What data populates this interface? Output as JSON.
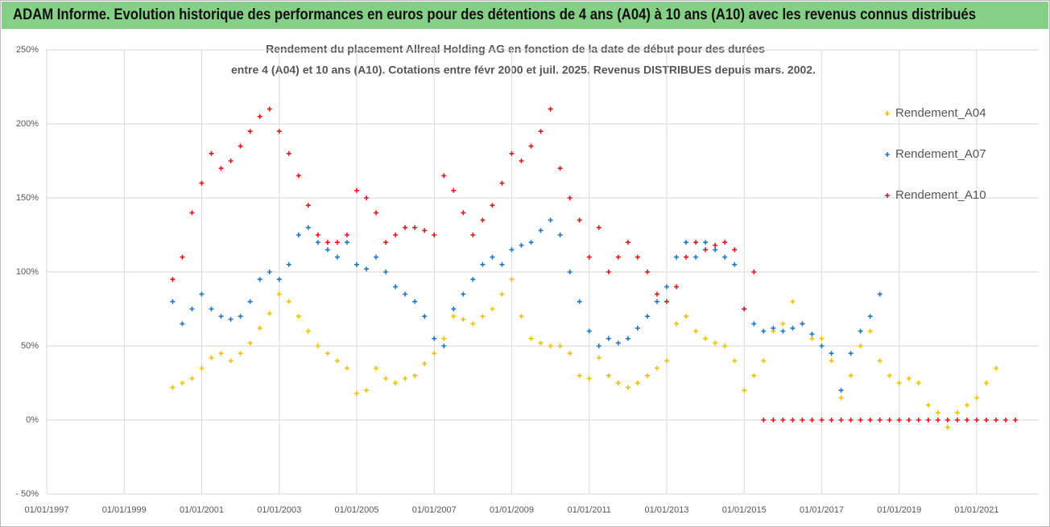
{
  "chart_data": {
    "type": "scatter",
    "title": "ADAM Informe. Evolution historique des performances en euros pour des détentions de 4 ans (A04) à 10 ans (A10) avec les revenus connus distribués",
    "subtitle": [
      "Rendement du placement Allreal Holding AG en fonction de la date de début pour des durées",
      "entre 4 (A04) et 10 ans (A10). Cotations entre févr 2000 et juil. 2025. Revenus DISTRIBUES depuis mars. 2002."
    ],
    "xlim": [
      1997,
      2022.6
    ],
    "ylim": [
      -50,
      250
    ],
    "grid": true,
    "legend": "right",
    "xticks": [
      {
        "value": 1997,
        "label": "01/01/1997"
      },
      {
        "value": 1999,
        "label": "01/01/1999"
      },
      {
        "value": 2001,
        "label": "01/01/2001"
      },
      {
        "value": 2003,
        "label": "01/01/2003"
      },
      {
        "value": 2005,
        "label": "01/01/2005"
      },
      {
        "value": 2007,
        "label": "01/01/2007"
      },
      {
        "value": 2009,
        "label": "01/01/2009"
      },
      {
        "value": 2011,
        "label": "01/01/2011"
      },
      {
        "value": 2013,
        "label": "01/01/2013"
      },
      {
        "value": 2015,
        "label": "01/01/2015"
      },
      {
        "value": 2017,
        "label": "01/01/2017"
      },
      {
        "value": 2019,
        "label": "01/01/2019"
      },
      {
        "value": 2021,
        "label": "01/01/2021"
      }
    ],
    "yticks": [
      {
        "value": -50,
        "label": "- 50%"
      },
      {
        "value": 0,
        "label": "0%"
      },
      {
        "value": 50,
        "label": "50%"
      },
      {
        "value": 100,
        "label": "100%"
      },
      {
        "value": 150,
        "label": "150%"
      },
      {
        "value": 200,
        "label": "200%"
      },
      {
        "value": 250,
        "label": "250%"
      }
    ],
    "x": [
      2000.25,
      2000.5,
      2000.75,
      2001,
      2001.25,
      2001.5,
      2001.75,
      2002,
      2002.25,
      2002.5,
      2002.75,
      2003,
      2003.25,
      2003.5,
      2003.75,
      2004,
      2004.25,
      2004.5,
      2004.75,
      2005,
      2005.25,
      2005.5,
      2005.75,
      2006,
      2006.25,
      2006.5,
      2006.75,
      2007,
      2007.25,
      2007.5,
      2007.75,
      2008,
      2008.25,
      2008.5,
      2008.75,
      2009,
      2009.25,
      2009.5,
      2009.75,
      2010,
      2010.25,
      2010.5,
      2010.75,
      2011,
      2011.25,
      2011.5,
      2011.75,
      2012,
      2012.25,
      2012.5,
      2012.75,
      2013,
      2013.25,
      2013.5,
      2013.75,
      2014,
      2014.25,
      2014.5,
      2014.75,
      2015,
      2015.25,
      2015.5,
      2015.75,
      2016,
      2016.25,
      2016.5,
      2016.75,
      2017,
      2017.25,
      2017.5,
      2017.75,
      2018,
      2018.25,
      2018.5,
      2018.75,
      2019,
      2019.25,
      2019.5,
      2019.75,
      2020,
      2020.25,
      2020.5,
      2020.75,
      2021,
      2021.25,
      2021.5,
      2021.75,
      2022
    ],
    "series": [
      {
        "name": "Rendement_A04",
        "color": "#f5c000",
        "values": [
          22,
          25,
          28,
          35,
          42,
          45,
          40,
          45,
          52,
          62,
          72,
          85,
          80,
          70,
          60,
          50,
          45,
          40,
          35,
          18,
          20,
          35,
          28,
          25,
          28,
          30,
          38,
          45,
          55,
          70,
          68,
          65,
          70,
          75,
          85,
          95,
          70,
          55,
          52,
          50,
          50,
          45,
          30,
          28,
          42,
          30,
          25,
          22,
          25,
          30,
          35,
          40,
          65,
          70,
          60,
          55,
          52,
          50,
          40,
          20,
          30,
          40,
          60,
          65,
          80,
          65,
          55,
          55,
          40,
          15,
          30,
          50,
          60,
          40,
          30,
          25,
          28,
          25,
          10,
          5,
          -5,
          5,
          10,
          15,
          25,
          35,
          null,
          null
        ]
      },
      {
        "name": "Rendement_A07",
        "color": "#1f78c8",
        "values": [
          80,
          65,
          75,
          85,
          75,
          70,
          68,
          70,
          80,
          95,
          100,
          95,
          105,
          125,
          130,
          120,
          115,
          110,
          120,
          105,
          102,
          110,
          100,
          90,
          85,
          80,
          70,
          55,
          50,
          75,
          85,
          95,
          105,
          110,
          105,
          115,
          118,
          120,
          128,
          135,
          125,
          100,
          80,
          60,
          50,
          55,
          52,
          55,
          62,
          70,
          80,
          90,
          110,
          120,
          110,
          120,
          115,
          110,
          105,
          75,
          65,
          60,
          62,
          60,
          62,
          65,
          58,
          50,
          45,
          20,
          45,
          60,
          70,
          85,
          null,
          null,
          null,
          null,
          null,
          null,
          null,
          null,
          null,
          null,
          null,
          null,
          null,
          null
        ]
      },
      {
        "name": "Rendement_A10",
        "color": "#e8161b",
        "values": [
          95,
          110,
          140,
          160,
          180,
          170,
          175,
          185,
          195,
          205,
          210,
          195,
          180,
          165,
          145,
          125,
          120,
          120,
          125,
          155,
          150,
          140,
          120,
          125,
          130,
          130,
          128,
          125,
          165,
          155,
          140,
          125,
          135,
          145,
          160,
          180,
          175,
          185,
          195,
          210,
          170,
          150,
          135,
          110,
          130,
          100,
          110,
          120,
          110,
          100,
          85,
          80,
          90,
          110,
          120,
          115,
          118,
          120,
          115,
          75,
          100,
          0,
          0,
          0,
          0,
          0,
          0,
          0,
          0,
          0,
          0,
          0,
          0,
          0,
          0,
          0,
          0,
          0,
          0,
          0,
          0,
          0,
          0,
          0,
          0,
          0,
          0,
          0
        ]
      }
    ]
  }
}
